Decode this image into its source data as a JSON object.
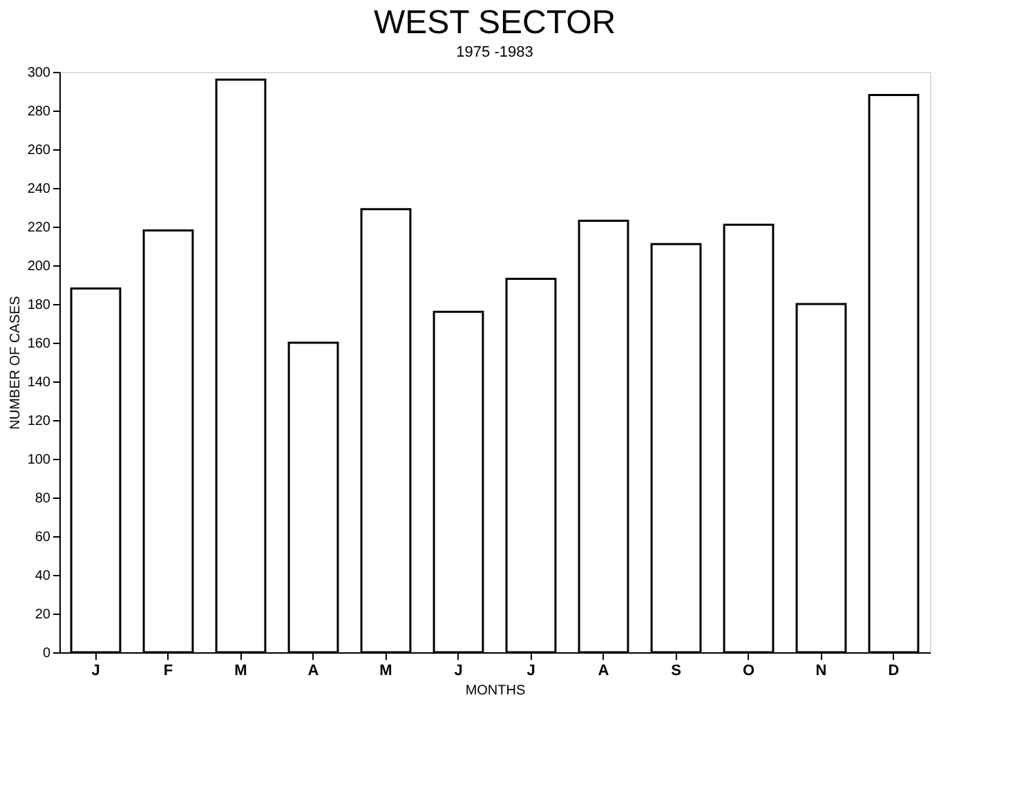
{
  "chart_data": {
    "type": "bar",
    "title": "WEST SECTOR",
    "subtitle": "1975 -1983",
    "xlabel": "MONTHS",
    "ylabel": "NUMBER OF CASES",
    "categories": [
      "J",
      "F",
      "M",
      "A",
      "M",
      "J",
      "J",
      "A",
      "S",
      "O",
      "N",
      "D"
    ],
    "values": [
      188,
      218,
      296,
      160,
      229,
      176,
      193,
      223,
      211,
      221,
      180,
      288
    ],
    "ylim": [
      0,
      300
    ],
    "yticks": [
      0,
      20,
      40,
      60,
      80,
      100,
      120,
      140,
      160,
      180,
      200,
      220,
      240,
      260,
      280,
      300
    ],
    "grid": false
  }
}
